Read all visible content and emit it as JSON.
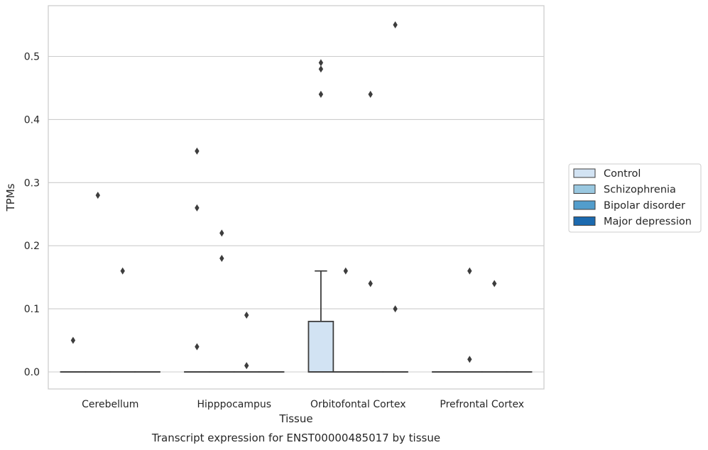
{
  "chart_data": {
    "type": "boxplot",
    "caption": "Transcript expression for ENST00000485017 by tissue",
    "xlabel": "Tissue",
    "ylabel": "TPMs",
    "categories": [
      "Cerebellum",
      "Hipppocampus",
      "Orbitofontal Cortex",
      "Prefrontal Cortex"
    ],
    "ylim": [
      -0.027,
      0.58
    ],
    "yticks": [
      0.0,
      0.1,
      0.2,
      0.3,
      0.4,
      0.5
    ],
    "ytick_labels": [
      "0.0",
      "0.1",
      "0.2",
      "0.3",
      "0.4",
      "0.5"
    ],
    "grid": "horizontal",
    "legend_position": "outside right",
    "series": [
      {
        "name": "Control",
        "color": "#d2e3f3",
        "boxes": [
          {
            "q1": 0,
            "median": 0,
            "q3": 0,
            "whisker_low": 0,
            "whisker_high": 0,
            "outliers": [
              0.05
            ]
          },
          {
            "q1": 0,
            "median": 0,
            "q3": 0,
            "whisker_low": 0,
            "whisker_high": 0,
            "outliers": [
              0.35,
              0.26,
              0.04
            ]
          },
          {
            "q1": 0,
            "median": 0,
            "q3": 0.08,
            "whisker_low": 0,
            "whisker_high": 0.16,
            "outliers": [
              0.49,
              0.48,
              0.44
            ]
          },
          {
            "q1": 0,
            "median": 0,
            "q3": 0,
            "whisker_low": 0,
            "whisker_high": 0,
            "outliers": []
          }
        ]
      },
      {
        "name": "Schizophrenia",
        "color": "#9ac8e0",
        "boxes": [
          {
            "q1": 0,
            "median": 0,
            "q3": 0,
            "whisker_low": 0,
            "whisker_high": 0,
            "outliers": [
              0.28
            ]
          },
          {
            "q1": 0,
            "median": 0,
            "q3": 0,
            "whisker_low": 0,
            "whisker_high": 0,
            "outliers": [
              0.22,
              0.18
            ]
          },
          {
            "q1": 0,
            "median": 0,
            "q3": 0,
            "whisker_low": 0,
            "whisker_high": 0,
            "outliers": [
              0.16
            ]
          },
          {
            "q1": 0,
            "median": 0,
            "q3": 0,
            "whisker_low": 0,
            "whisker_high": 0,
            "outliers": [
              0.16,
              0.02
            ]
          }
        ]
      },
      {
        "name": "Bipolar disorder",
        "color": "#529dcc",
        "boxes": [
          {
            "q1": 0,
            "median": 0,
            "q3": 0,
            "whisker_low": 0,
            "whisker_high": 0,
            "outliers": [
              0.16
            ]
          },
          {
            "q1": 0,
            "median": 0,
            "q3": 0,
            "whisker_low": 0,
            "whisker_high": 0,
            "outliers": [
              0.09,
              0.01
            ]
          },
          {
            "q1": 0,
            "median": 0,
            "q3": 0,
            "whisker_low": 0,
            "whisker_high": 0,
            "outliers": [
              0.44,
              0.14
            ]
          },
          {
            "q1": 0,
            "median": 0,
            "q3": 0,
            "whisker_low": 0,
            "whisker_high": 0,
            "outliers": [
              0.14
            ]
          }
        ]
      },
      {
        "name": "Major depression",
        "color": "#1c6aaf",
        "boxes": [
          {
            "q1": 0,
            "median": 0,
            "q3": 0,
            "whisker_low": 0,
            "whisker_high": 0,
            "outliers": []
          },
          {
            "q1": 0,
            "median": 0,
            "q3": 0,
            "whisker_low": 0,
            "whisker_high": 0,
            "outliers": []
          },
          {
            "q1": 0,
            "median": 0,
            "q3": 0,
            "whisker_low": 0,
            "whisker_high": 0,
            "outliers": [
              0.55,
              0.1
            ]
          },
          {
            "q1": 0,
            "median": 0,
            "q3": 0,
            "whisker_low": 0,
            "whisker_high": 0,
            "outliers": []
          }
        ]
      }
    ]
  }
}
